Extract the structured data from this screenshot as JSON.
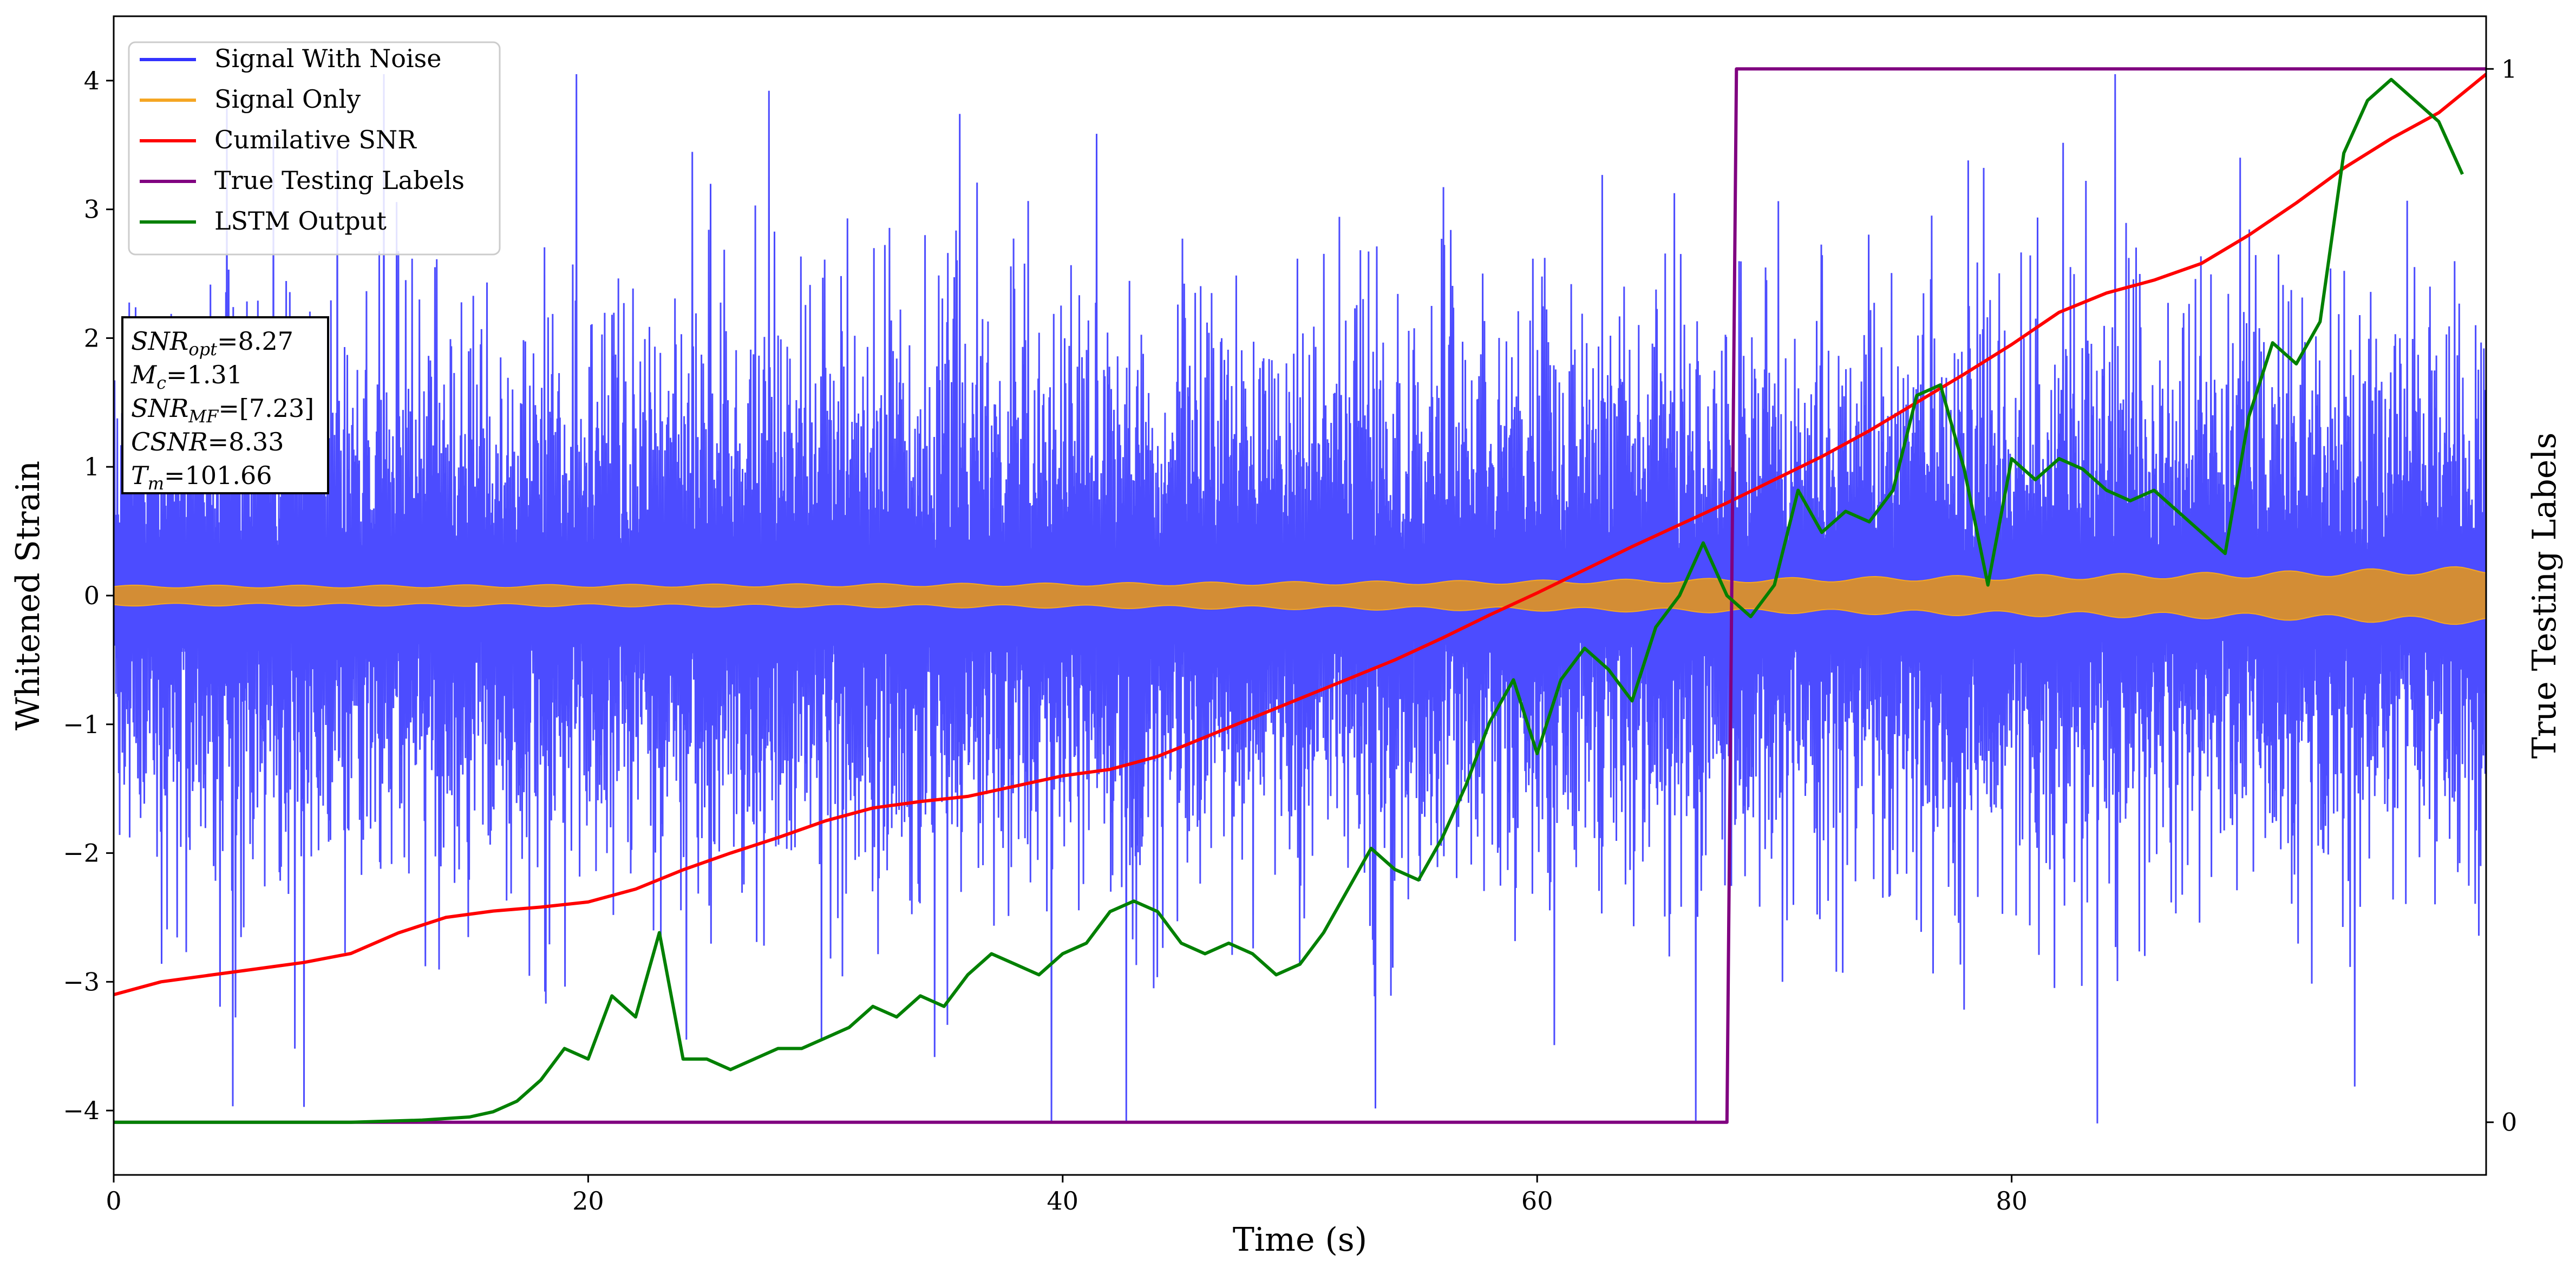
{
  "chart_data": {
    "type": "line",
    "xlabel": "Time (s)",
    "ylabel": "Whitened Strain",
    "y2label": "True Testing Labels",
    "xlim": [
      0,
      100
    ],
    "ylim": [
      -4.5,
      4.5
    ],
    "y2lim": [
      -0.05,
      1.05
    ],
    "grid": false,
    "legend_position": "top-left",
    "x_ticks": [
      "0",
      "20",
      "40",
      "60",
      "80"
    ],
    "x_tick_values": [
      0,
      20,
      40,
      60,
      80
    ],
    "y_ticks": [
      "−4",
      "−3",
      "−2",
      "−1",
      "0",
      "1",
      "2",
      "3",
      "4"
    ],
    "y_tick_values": [
      -4,
      -3,
      -2,
      -1,
      0,
      1,
      2,
      3,
      4
    ],
    "y2_ticks": [
      "0",
      "1"
    ],
    "y2_tick_values": [
      0,
      1
    ],
    "legend": [
      {
        "label": "Signal With Noise",
        "color": "#3333ff"
      },
      {
        "label": "Signal Only",
        "color": "#f5a623"
      },
      {
        "label": "Cumilative SNR",
        "color": "#ff0000"
      },
      {
        "label": "True Testing Labels",
        "color": "#800080"
      },
      {
        "label": "LSTM Output",
        "color": "#008000"
      }
    ],
    "annotation": [
      {
        "base": "SNR",
        "sub": "opt",
        "value": "=8.27"
      },
      {
        "base": "M",
        "sub": "c",
        "value": "=1.31"
      },
      {
        "base": "SNR",
        "sub": "MF",
        "value": "=[7.23]"
      },
      {
        "base": "CSNR",
        "sub": "",
        "value": "=8.33"
      },
      {
        "base": "T",
        "sub": "m",
        "value": "=101.66"
      }
    ],
    "series": [
      {
        "name": "Signal With Noise",
        "color": "#3333ff",
        "axis": "left",
        "style": "noise",
        "value_range": [
          -4.1,
          4.05
        ],
        "typical_amplitude": 2.2
      },
      {
        "name": "Signal Only",
        "color": "#f5a623",
        "axis": "left",
        "style": "envelope",
        "x": [
          0,
          10,
          20,
          30,
          40,
          50,
          60,
          70,
          80,
          90,
          100
        ],
        "amplitude": [
          0.07,
          0.07,
          0.075,
          0.08,
          0.085,
          0.095,
          0.105,
          0.12,
          0.14,
          0.16,
          0.2
        ]
      },
      {
        "name": "Cumilative SNR",
        "color": "#ff0000",
        "axis": "left",
        "x": [
          0,
          2,
          4,
          6,
          8,
          10,
          12,
          14,
          16,
          18,
          20,
          22,
          24,
          26,
          28,
          30,
          32,
          34,
          36,
          38,
          40,
          42,
          44,
          46,
          48,
          50,
          52,
          54,
          56,
          58,
          60,
          62,
          64,
          66,
          68,
          70,
          72,
          74,
          76,
          78,
          80,
          82,
          84,
          86,
          88,
          90,
          92,
          94,
          96,
          98,
          100
        ],
        "y": [
          -3.1,
          -3.0,
          -2.95,
          -2.9,
          -2.85,
          -2.78,
          -2.62,
          -2.5,
          -2.45,
          -2.42,
          -2.38,
          -2.28,
          -2.13,
          -2.0,
          -1.88,
          -1.75,
          -1.65,
          -1.6,
          -1.56,
          -1.48,
          -1.4,
          -1.35,
          -1.25,
          -1.1,
          -0.95,
          -0.8,
          -0.65,
          -0.5,
          -0.33,
          -0.15,
          0.02,
          0.2,
          0.38,
          0.55,
          0.72,
          0.9,
          1.08,
          1.28,
          1.5,
          1.72,
          1.95,
          2.2,
          2.35,
          2.45,
          2.58,
          2.8,
          3.05,
          3.32,
          3.55,
          3.75,
          4.05
        ]
      },
      {
        "name": "True Testing Labels",
        "color": "#800080",
        "axis": "right",
        "x": [
          0,
          68,
          68.4,
          100
        ],
        "y": [
          0,
          0,
          1,
          1
        ]
      },
      {
        "name": "LSTM Output",
        "color": "#008000",
        "axis": "right",
        "x": [
          0,
          10,
          13,
          15,
          16,
          17,
          18,
          19,
          20,
          21,
          22,
          23,
          24,
          25,
          26,
          27,
          28,
          29,
          30,
          31,
          32,
          33,
          34,
          35,
          36,
          37,
          38,
          39,
          40,
          41,
          42,
          43,
          44,
          45,
          46,
          47,
          48,
          49,
          50,
          51,
          52,
          53,
          54,
          55,
          56,
          57,
          58,
          59,
          60,
          61,
          62,
          63,
          64,
          65,
          66,
          67,
          68,
          69,
          70,
          71,
          72,
          73,
          74,
          75,
          76,
          77,
          78,
          79,
          80,
          81,
          82,
          83,
          84,
          85,
          86,
          87,
          88,
          89,
          90,
          91,
          92,
          93,
          94,
          95,
          96,
          97,
          98,
          99
        ],
        "y": [
          0,
          0,
          0.002,
          0.005,
          0.01,
          0.02,
          0.04,
          0.07,
          0.06,
          0.12,
          0.1,
          0.18,
          0.06,
          0.06,
          0.05,
          0.06,
          0.07,
          0.07,
          0.08,
          0.09,
          0.11,
          0.1,
          0.12,
          0.11,
          0.14,
          0.16,
          0.15,
          0.14,
          0.16,
          0.17,
          0.2,
          0.21,
          0.2,
          0.17,
          0.16,
          0.17,
          0.16,
          0.14,
          0.15,
          0.18,
          0.22,
          0.26,
          0.24,
          0.23,
          0.27,
          0.32,
          0.38,
          0.42,
          0.35,
          0.42,
          0.45,
          0.43,
          0.4,
          0.47,
          0.5,
          0.55,
          0.5,
          0.48,
          0.51,
          0.6,
          0.56,
          0.58,
          0.57,
          0.6,
          0.69,
          0.7,
          0.62,
          0.51,
          0.63,
          0.61,
          0.63,
          0.62,
          0.6,
          0.59,
          0.6,
          0.58,
          0.56,
          0.54,
          0.67,
          0.74,
          0.72,
          0.76,
          0.92,
          0.97,
          0.99,
          0.97,
          0.95,
          0.9
        ]
      }
    ]
  }
}
